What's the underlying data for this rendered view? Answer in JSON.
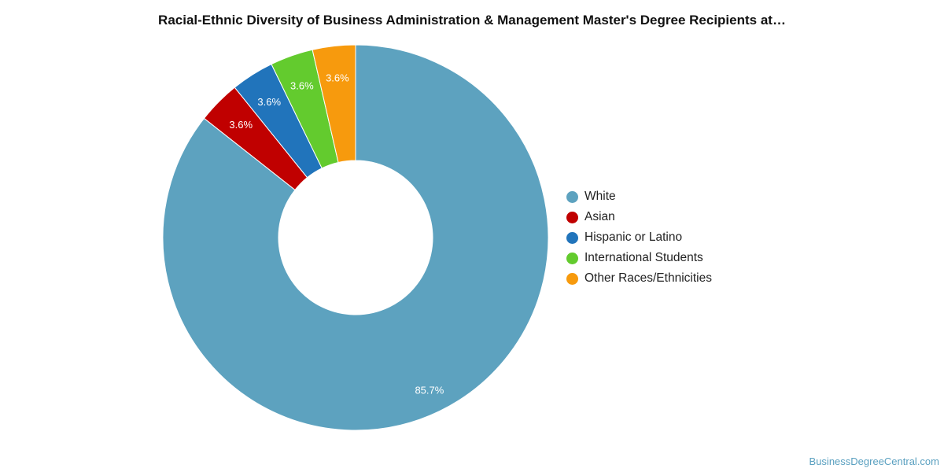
{
  "title": "Racial-Ethnic Diversity of Business Administration & Management Master's Degree Recipients at…",
  "credit": "BusinessDegreeCentral.com",
  "chart_data": {
    "type": "pie",
    "variant": "donut",
    "title": "Racial-Ethnic Diversity of Business Administration & Management Master's Degree Recipients at…",
    "categories": [
      "White",
      "Asian",
      "Hispanic or Latino",
      "International Students",
      "Other Races/Ethnicities"
    ],
    "values": [
      85.7,
      3.6,
      3.6,
      3.6,
      3.6
    ],
    "labels": [
      "85.7%",
      "3.6%",
      "3.6%",
      "3.6%",
      "3.6%"
    ],
    "colors": [
      "#5da2bf",
      "#c00000",
      "#2174bb",
      "#63cb2e",
      "#f79a0d"
    ],
    "legend_position": "right"
  }
}
